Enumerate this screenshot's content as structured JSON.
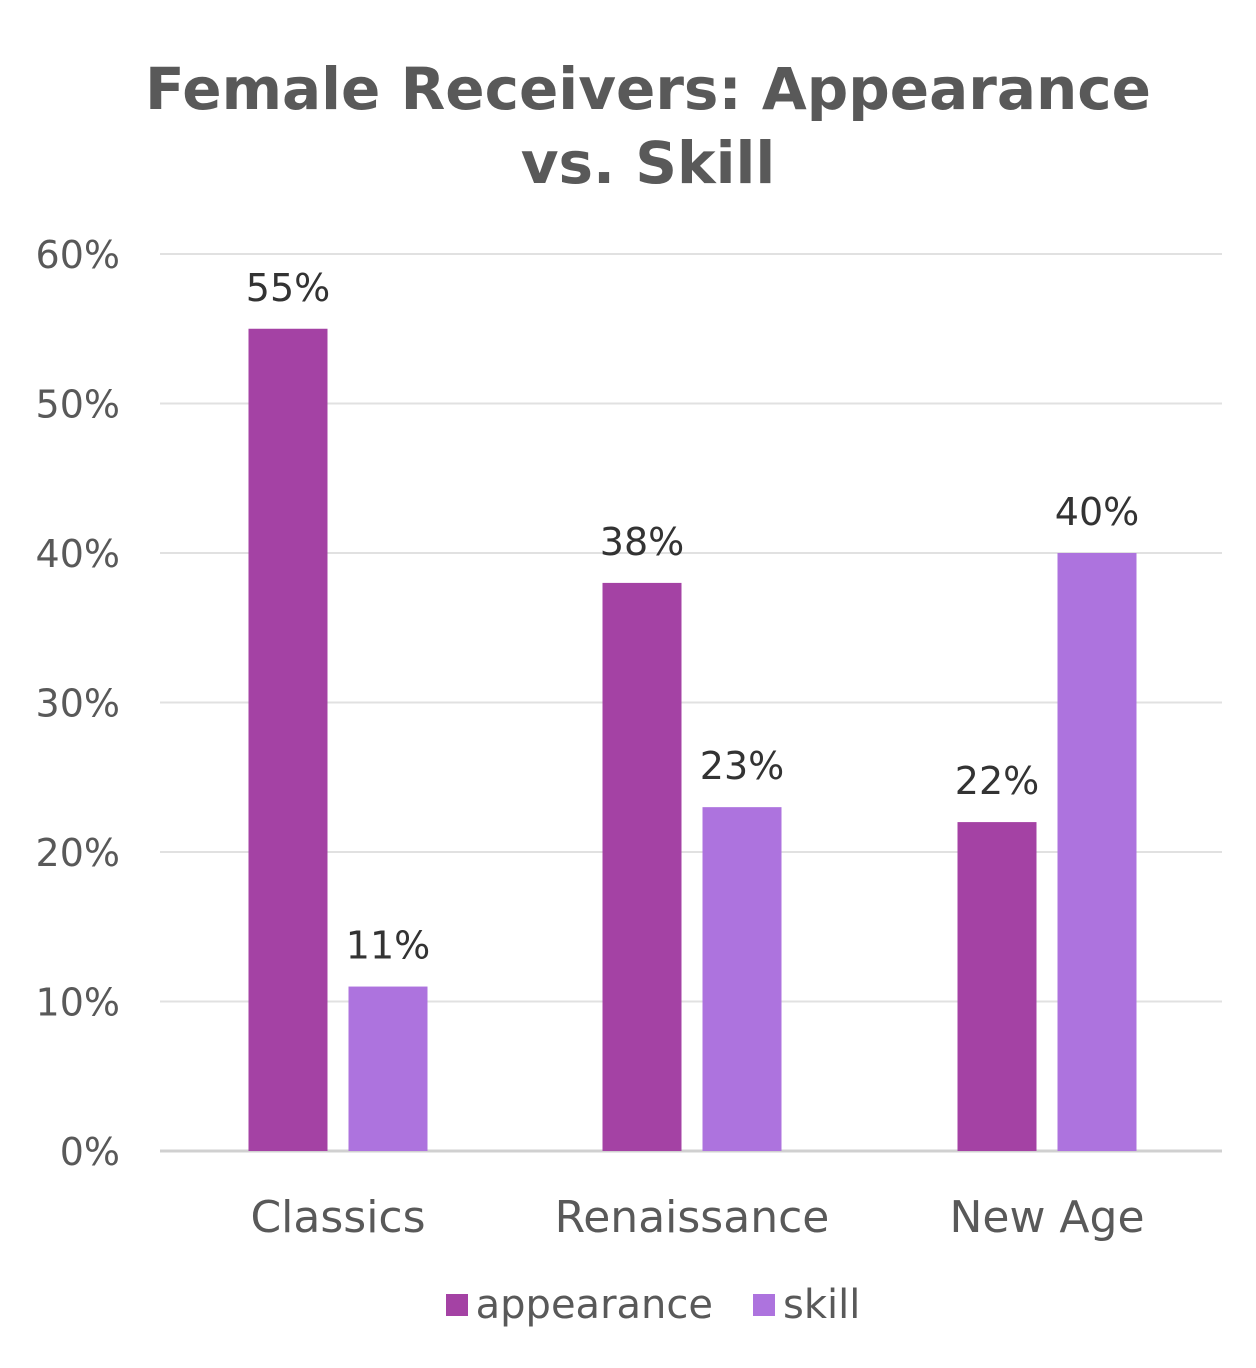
{
  "chart_data": {
    "type": "bar",
    "title": "Female Receivers: Appearance vs. Skill",
    "title_lines": [
      "Female Receivers: Appearance",
      "vs. Skill"
    ],
    "categories": [
      "Classics",
      "Renaissance",
      "New Age"
    ],
    "series": [
      {
        "name": "appearance",
        "values": [
          55,
          38,
          22
        ],
        "labels": [
          "55%",
          "38%",
          "22%"
        ],
        "color": "#a442a4"
      },
      {
        "name": "skill",
        "values": [
          11,
          23,
          40
        ],
        "labels": [
          "11%",
          "23%",
          "40%"
        ],
        "color": "#ad73de"
      }
    ],
    "y_ticks": [
      "0%",
      "10%",
      "20%",
      "30%",
      "40%",
      "50%",
      "60%"
    ],
    "ylim": [
      0,
      60
    ],
    "xlabel": "",
    "ylabel": "",
    "grid": true,
    "legend_position": "bottom"
  }
}
